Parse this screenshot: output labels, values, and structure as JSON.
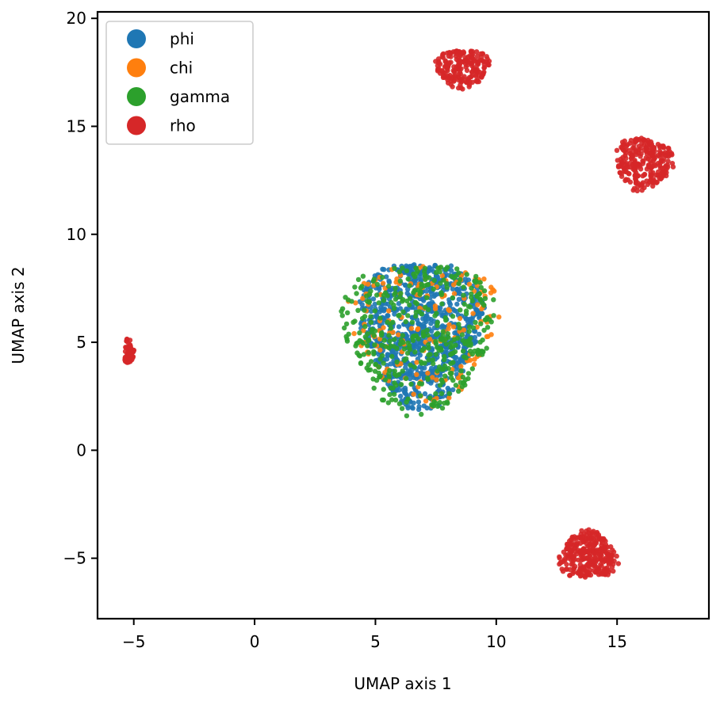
{
  "chart_data": {
    "type": "scatter",
    "xlabel": "UMAP axis 1",
    "ylabel": "UMAP axis 2",
    "xlim": [
      -6.5,
      18.8
    ],
    "ylim": [
      -7.8,
      20.3
    ],
    "xticks": [
      -5,
      0,
      5,
      10,
      15
    ],
    "yticks": [
      -5,
      0,
      5,
      10,
      15,
      20
    ],
    "xtick_labels": [
      "−5",
      "0",
      "5",
      "10",
      "15"
    ],
    "ytick_labels": [
      "−5",
      "0",
      "5",
      "10",
      "15",
      "20"
    ],
    "grid": false,
    "legend": {
      "location": "upper-left"
    },
    "series": [
      {
        "name": "phi",
        "color": "#1f77b4",
        "clusters": [
          {
            "cx": 6.9,
            "cy": 5.6,
            "rx": 2.5,
            "ry": 3.4,
            "n": 900
          }
        ]
      },
      {
        "name": "chi",
        "color": "#ff7f0e",
        "clusters": [
          {
            "cx": 7.1,
            "cy": 5.7,
            "rx": 3.1,
            "ry": 3.3,
            "n": 160
          }
        ]
      },
      {
        "name": "gamma",
        "color": "#2ca02c",
        "clusters": [
          {
            "cx": 6.8,
            "cy": 5.4,
            "rx": 3.1,
            "ry": 3.5,
            "n": 420
          }
        ]
      },
      {
        "name": "rho",
        "color": "#d62728",
        "clusters": [
          {
            "cx": 8.6,
            "cy": 17.7,
            "rx": 1.1,
            "ry": 0.9,
            "n": 200
          },
          {
            "cx": 16.1,
            "cy": 13.3,
            "rx": 1.2,
            "ry": 1.2,
            "n": 260
          },
          {
            "cx": -5.2,
            "cy": 4.6,
            "rx": 0.2,
            "ry": 0.6,
            "n": 60
          },
          {
            "cx": 13.8,
            "cy": -4.9,
            "rx": 1.2,
            "ry": 1.1,
            "n": 300
          }
        ]
      }
    ]
  }
}
